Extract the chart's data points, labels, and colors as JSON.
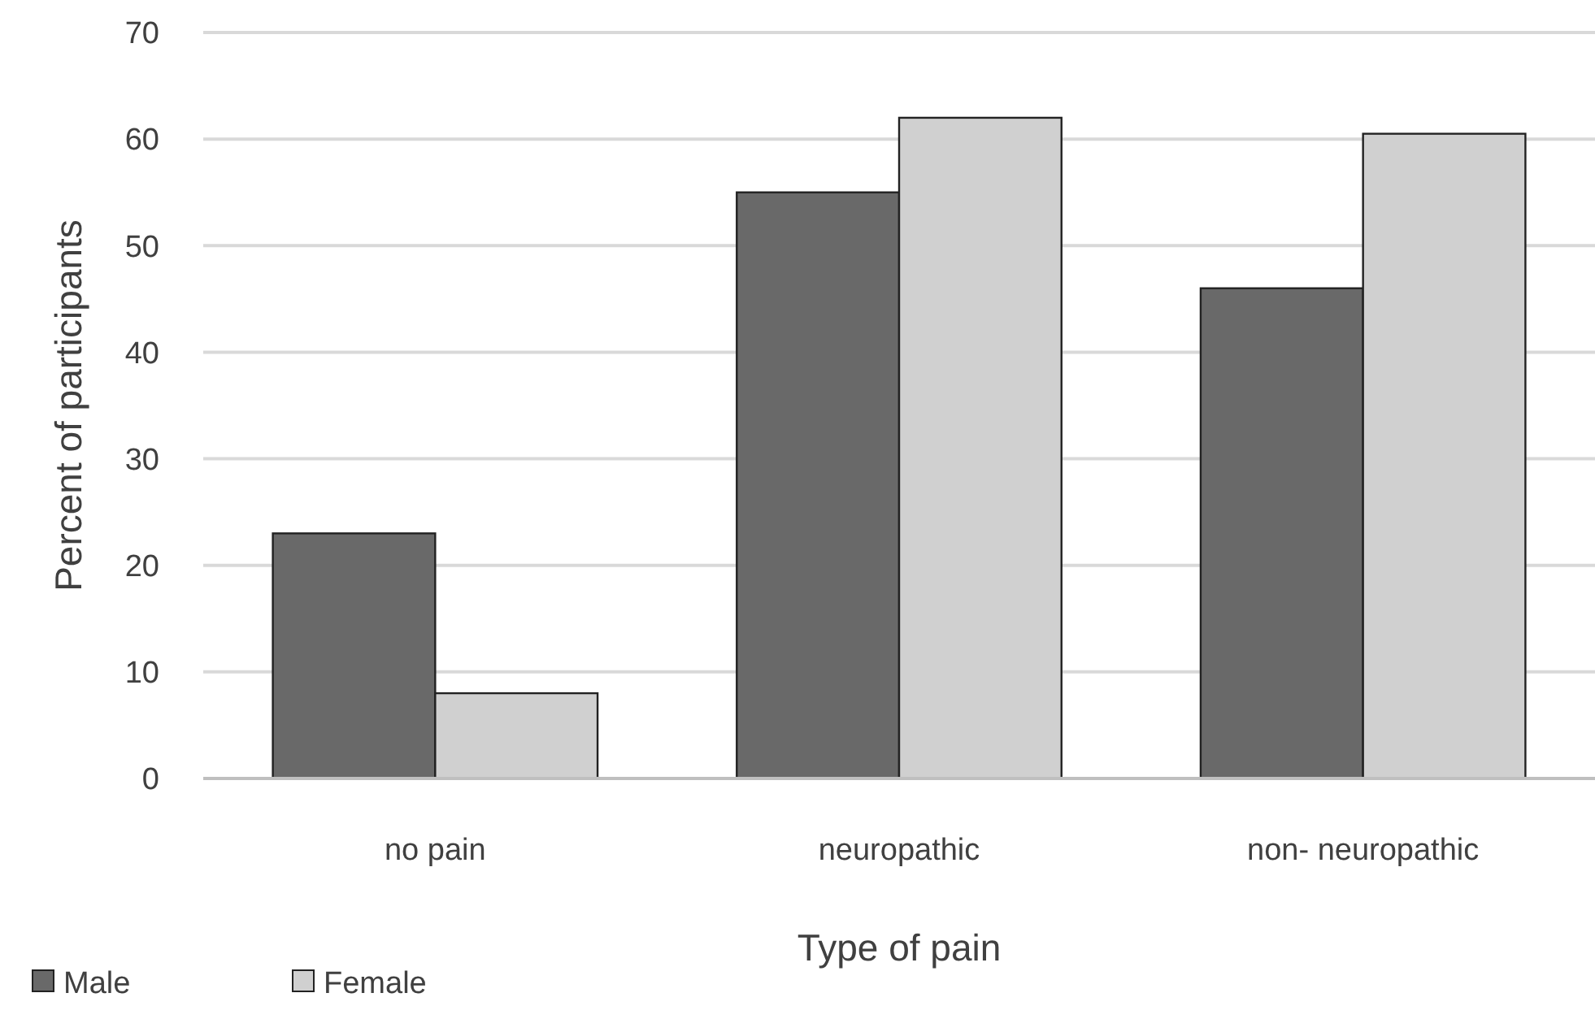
{
  "chart_data": {
    "type": "bar",
    "xlabel": "Type of pain",
    "ylabel": "Percent of participants",
    "categories": [
      "no pain",
      "neuropathic",
      "non- neuropathic"
    ],
    "series": [
      {
        "name": "Male",
        "color": "#696969",
        "values": [
          23,
          55,
          46
        ]
      },
      {
        "name": "Female",
        "color": "#d0d0d0",
        "values": [
          8,
          62,
          60.5
        ]
      }
    ],
    "ylim": [
      0,
      70
    ],
    "yticks": [
      0,
      10,
      20,
      30,
      40,
      50,
      60,
      70
    ],
    "grid": "y",
    "legend": "bottom left"
  }
}
